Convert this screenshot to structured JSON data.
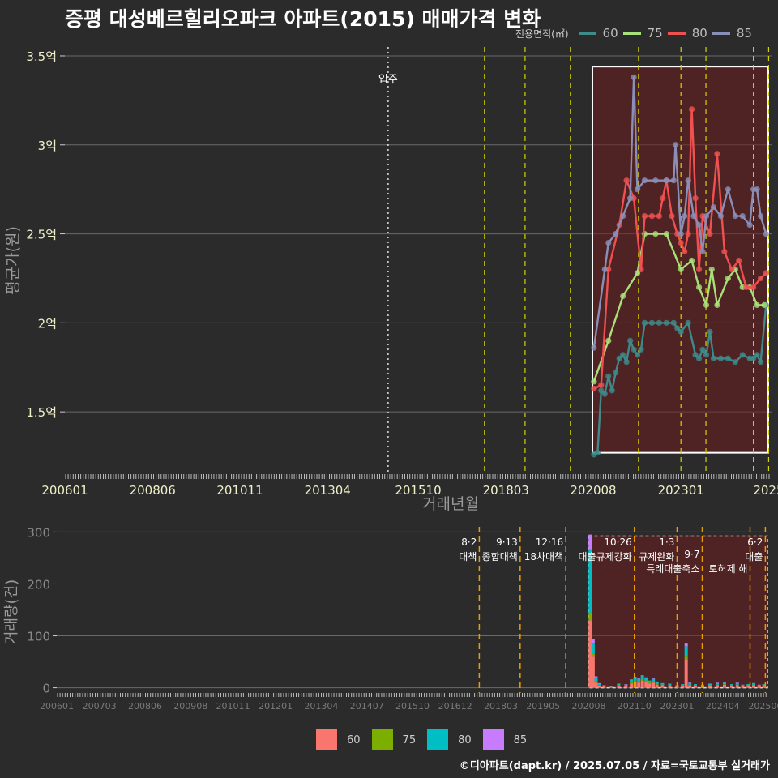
{
  "title": "증평 대성베르힐리오파크 아파트(2015) 매매가격 변화",
  "footer": "©디아파트(dapt.kr) / 2025.07.05 / 자료=국토교통부 실거래가",
  "legend_top": {
    "title": "전용면적(㎡)",
    "items": [
      {
        "label": "60",
        "color": "#3f8a8a"
      },
      {
        "label": "75",
        "color": "#a8e07a"
      },
      {
        "label": "80",
        "color": "#f05050"
      },
      {
        "label": "85",
        "color": "#8a8fb8"
      }
    ]
  },
  "legend_bottom": {
    "items": [
      {
        "label": "60",
        "color": "#f8766d"
      },
      {
        "label": "75",
        "color": "#7cae00"
      },
      {
        "label": "80",
        "color": "#00bfc4"
      },
      {
        "label": "85",
        "color": "#c77cff"
      }
    ]
  },
  "chart_data": [
    {
      "type": "line",
      "title": "증평 대성베르힐리오파크 아파트(2015) 매매가격 변화",
      "xlabel": "거래년월",
      "ylabel": "평균가(원)",
      "x_range": [
        2006.0,
        2025.5
      ],
      "ylim": [
        1.15,
        3.55
      ],
      "y_ticks": [
        {
          "v": 1.5,
          "label": "1.5억"
        },
        {
          "v": 2,
          "label": "2억"
        },
        {
          "v": 2.5,
          "label": "2.5억"
        },
        {
          "v": 3,
          "label": "3억"
        },
        {
          "v": 3.5,
          "label": "3.5억"
        }
      ],
      "x_ticks": [
        {
          "v": 2006.0,
          "label": "200601"
        },
        {
          "v": 2008.42,
          "label": "200806"
        },
        {
          "v": 2010.83,
          "label": "201011"
        },
        {
          "v": 2013.25,
          "label": "201304"
        },
        {
          "v": 2015.75,
          "label": "201510"
        },
        {
          "v": 2018.17,
          "label": "201803"
        },
        {
          "v": 2020.58,
          "label": "202008"
        },
        {
          "v": 2023.0,
          "label": "202301"
        },
        {
          "v": 2025.42,
          "label": "2025"
        }
      ],
      "annotation": {
        "x": 2014.92,
        "label": "입주"
      },
      "policy_lines": [
        2017.58,
        2018.7,
        2019.95,
        2021.83,
        2023.0,
        2023.69,
        2025.0,
        2025.42
      ],
      "highlight_period": [
        2020.58,
        2025.5
      ],
      "series": [
        {
          "name": "60",
          "color": "#3f8a8a",
          "points": [
            [
              2020.6,
              1.26
            ],
            [
              2020.7,
              1.27
            ],
            [
              2020.8,
              1.62
            ],
            [
              2020.9,
              1.6
            ],
            [
              2021.0,
              1.7
            ],
            [
              2021.1,
              1.62
            ],
            [
              2021.2,
              1.72
            ],
            [
              2021.3,
              1.8
            ],
            [
              2021.4,
              1.82
            ],
            [
              2021.5,
              1.78
            ],
            [
              2021.6,
              1.9
            ],
            [
              2021.7,
              1.85
            ],
            [
              2021.8,
              1.82
            ],
            [
              2021.9,
              1.85
            ],
            [
              2022.0,
              2.0
            ],
            [
              2022.2,
              2.0
            ],
            [
              2022.4,
              2.0
            ],
            [
              2022.6,
              2.0
            ],
            [
              2022.8,
              2.0
            ],
            [
              2022.9,
              1.97
            ],
            [
              2023.0,
              1.95
            ],
            [
              2023.2,
              2.0
            ],
            [
              2023.4,
              1.82
            ],
            [
              2023.5,
              1.8
            ],
            [
              2023.6,
              1.85
            ],
            [
              2023.7,
              1.82
            ],
            [
              2023.8,
              1.95
            ],
            [
              2023.9,
              1.8
            ],
            [
              2024.1,
              1.8
            ],
            [
              2024.3,
              1.8
            ],
            [
              2024.5,
              1.78
            ],
            [
              2024.7,
              1.82
            ],
            [
              2024.9,
              1.8
            ],
            [
              2025.0,
              1.8
            ],
            [
              2025.1,
              1.82
            ],
            [
              2025.2,
              1.78
            ],
            [
              2025.35,
              2.1
            ]
          ]
        },
        {
          "name": "75",
          "color": "#a8e07a",
          "points": [
            [
              2020.6,
              1.67
            ],
            [
              2021.0,
              1.9
            ],
            [
              2021.4,
              2.15
            ],
            [
              2021.8,
              2.28
            ],
            [
              2022.0,
              2.5
            ],
            [
              2022.3,
              2.5
            ],
            [
              2022.6,
              2.5
            ],
            [
              2023.0,
              2.3
            ],
            [
              2023.3,
              2.35
            ],
            [
              2023.5,
              2.2
            ],
            [
              2023.7,
              2.1
            ],
            [
              2023.85,
              2.3
            ],
            [
              2024.0,
              2.1
            ],
            [
              2024.3,
              2.25
            ],
            [
              2024.5,
              2.3
            ],
            [
              2024.7,
              2.2
            ],
            [
              2024.9,
              2.2
            ],
            [
              2025.1,
              2.1
            ],
            [
              2025.3,
              2.1
            ]
          ]
        },
        {
          "name": "80",
          "color": "#f05050",
          "points": [
            [
              2020.6,
              1.63
            ],
            [
              2020.8,
              1.65
            ],
            [
              2021.0,
              2.3
            ],
            [
              2021.3,
              2.55
            ],
            [
              2021.5,
              2.8
            ],
            [
              2021.7,
              2.7
            ],
            [
              2021.9,
              2.3
            ],
            [
              2022.0,
              2.6
            ],
            [
              2022.2,
              2.6
            ],
            [
              2022.4,
              2.6
            ],
            [
              2022.5,
              2.7
            ],
            [
              2022.6,
              2.8
            ],
            [
              2022.75,
              2.6
            ],
            [
              2022.9,
              2.5
            ],
            [
              2023.0,
              2.45
            ],
            [
              2023.1,
              2.4
            ],
            [
              2023.2,
              2.5
            ],
            [
              2023.3,
              3.2
            ],
            [
              2023.4,
              2.7
            ],
            [
              2023.5,
              2.3
            ],
            [
              2023.6,
              2.6
            ],
            [
              2023.8,
              2.5
            ],
            [
              2024.0,
              2.95
            ],
            [
              2024.2,
              2.4
            ],
            [
              2024.4,
              2.3
            ],
            [
              2024.6,
              2.35
            ],
            [
              2024.8,
              2.2
            ],
            [
              2025.0,
              2.2
            ],
            [
              2025.2,
              2.25
            ],
            [
              2025.35,
              2.28
            ]
          ]
        },
        {
          "name": "85",
          "color": "#8a8fb8",
          "points": [
            [
              2020.6,
              1.86
            ],
            [
              2020.9,
              2.3
            ],
            [
              2021.0,
              2.45
            ],
            [
              2021.2,
              2.5
            ],
            [
              2021.4,
              2.6
            ],
            [
              2021.6,
              2.7
            ],
            [
              2021.7,
              3.38
            ],
            [
              2021.8,
              2.75
            ],
            [
              2022.0,
              2.8
            ],
            [
              2022.3,
              2.8
            ],
            [
              2022.6,
              2.8
            ],
            [
              2022.8,
              2.8
            ],
            [
              2022.85,
              3.0
            ],
            [
              2023.0,
              2.5
            ],
            [
              2023.1,
              2.6
            ],
            [
              2023.2,
              2.8
            ],
            [
              2023.35,
              2.6
            ],
            [
              2023.5,
              2.55
            ],
            [
              2023.6,
              2.4
            ],
            [
              2023.7,
              2.6
            ],
            [
              2023.9,
              2.65
            ],
            [
              2024.1,
              2.6
            ],
            [
              2024.3,
              2.75
            ],
            [
              2024.5,
              2.6
            ],
            [
              2024.7,
              2.6
            ],
            [
              2024.9,
              2.55
            ],
            [
              2025.0,
              2.75
            ],
            [
              2025.1,
              2.75
            ],
            [
              2025.2,
              2.6
            ],
            [
              2025.35,
              2.5
            ]
          ]
        }
      ]
    },
    {
      "type": "bar",
      "ylabel": "거래량(건)",
      "x_range": [
        2006.0,
        2025.5
      ],
      "ylim": [
        -10,
        310
      ],
      "y_ticks": [
        {
          "v": 0,
          "label": "0"
        },
        {
          "v": 100,
          "label": "100"
        },
        {
          "v": 200,
          "label": "200"
        },
        {
          "v": 300,
          "label": "300"
        }
      ],
      "x_ticks": [
        {
          "v": 2006.0,
          "label": "200601"
        },
        {
          "v": 2007.17,
          "label": "200703"
        },
        {
          "v": 2008.42,
          "label": "200806"
        },
        {
          "v": 2009.67,
          "label": "200908"
        },
        {
          "v": 2010.83,
          "label": "201011"
        },
        {
          "v": 2012.0,
          "label": "201201"
        },
        {
          "v": 2013.25,
          "label": "201304"
        },
        {
          "v": 2014.5,
          "label": "201407"
        },
        {
          "v": 2015.75,
          "label": "201510"
        },
        {
          "v": 2016.92,
          "label": "201612"
        },
        {
          "v": 2018.17,
          "label": "201803"
        },
        {
          "v": 2019.33,
          "label": "201905"
        },
        {
          "v": 2020.58,
          "label": "202008"
        },
        {
          "v": 2021.83,
          "label": "202110"
        },
        {
          "v": 2023.0,
          "label": "202301"
        },
        {
          "v": 2024.25,
          "label": "202404"
        },
        {
          "v": 2025.42,
          "label": "202506"
        }
      ],
      "policy_lines": [
        {
          "x": 2017.58,
          "date": "8·2",
          "label": "대책"
        },
        {
          "x": 2018.7,
          "date": "9·13",
          "label": "종합대책"
        },
        {
          "x": 2019.95,
          "date": "12·16",
          "label": "18차대책"
        },
        {
          "x": 2021.83,
          "date": "10·26",
          "label": "대출규제강화"
        },
        {
          "x": 2023.0,
          "date": "1·3",
          "label": "규제완화"
        },
        {
          "x": 2023.69,
          "date": "9·7",
          "label": "특례대출축소"
        },
        {
          "x": 2025.0,
          "date": "",
          "label": "토허제 해"
        },
        {
          "x": 2025.42,
          "date": "6·2",
          "label": "대출"
        }
      ],
      "highlight_period": [
        2020.58,
        2025.5
      ],
      "series": [
        {
          "name": "60",
          "color": "#f8766d"
        },
        {
          "name": "75",
          "color": "#7cae00"
        },
        {
          "name": "80",
          "color": "#00bfc4"
        },
        {
          "name": "85",
          "color": "#c77cff"
        }
      ],
      "bars": [
        {
          "x": 2020.62,
          "values": [
            130,
            15,
            120,
            30
          ]
        },
        {
          "x": 2020.7,
          "values": [
            60,
            5,
            20,
            8
          ]
        },
        {
          "x": 2020.78,
          "values": [
            10,
            2,
            8,
            2
          ]
        },
        {
          "x": 2020.86,
          "values": [
            4,
            1,
            3,
            1
          ]
        },
        {
          "x": 2021.0,
          "values": [
            3,
            0,
            2,
            0
          ]
        },
        {
          "x": 2021.2,
          "values": [
            2,
            0,
            2,
            0
          ]
        },
        {
          "x": 2021.4,
          "values": [
            4,
            1,
            3,
            0
          ]
        },
        {
          "x": 2021.6,
          "values": [
            3,
            1,
            2,
            1
          ]
        },
        {
          "x": 2021.75,
          "values": [
            8,
            2,
            5,
            1
          ]
        },
        {
          "x": 2021.85,
          "values": [
            12,
            2,
            6,
            1
          ]
        },
        {
          "x": 2021.95,
          "values": [
            10,
            2,
            5,
            1
          ]
        },
        {
          "x": 2022.05,
          "values": [
            14,
            3,
            6,
            1
          ]
        },
        {
          "x": 2022.15,
          "values": [
            12,
            2,
            5,
            1
          ]
        },
        {
          "x": 2022.25,
          "values": [
            8,
            2,
            4,
            0
          ]
        },
        {
          "x": 2022.35,
          "values": [
            10,
            2,
            5,
            1
          ]
        },
        {
          "x": 2022.45,
          "values": [
            6,
            1,
            4,
            1
          ]
        },
        {
          "x": 2022.6,
          "values": [
            5,
            1,
            3,
            0
          ]
        },
        {
          "x": 2022.8,
          "values": [
            4,
            1,
            3,
            0
          ]
        },
        {
          "x": 2023.0,
          "values": [
            3,
            0,
            2,
            0
          ]
        },
        {
          "x": 2023.15,
          "values": [
            4,
            1,
            2,
            0
          ]
        },
        {
          "x": 2023.25,
          "values": [
            55,
            5,
            20,
            5
          ]
        },
        {
          "x": 2023.35,
          "values": [
            5,
            1,
            3,
            1
          ]
        },
        {
          "x": 2023.5,
          "values": [
            4,
            1,
            2,
            0
          ]
        },
        {
          "x": 2023.7,
          "values": [
            3,
            1,
            2,
            0
          ]
        },
        {
          "x": 2023.9,
          "values": [
            4,
            1,
            3,
            0
          ]
        },
        {
          "x": 2024.1,
          "values": [
            5,
            1,
            3,
            1
          ]
        },
        {
          "x": 2024.3,
          "values": [
            6,
            1,
            3,
            1
          ]
        },
        {
          "x": 2024.5,
          "values": [
            4,
            1,
            2,
            0
          ]
        },
        {
          "x": 2024.65,
          "values": [
            5,
            1,
            3,
            1
          ]
        },
        {
          "x": 2024.8,
          "values": [
            3,
            1,
            2,
            0
          ]
        },
        {
          "x": 2024.95,
          "values": [
            4,
            1,
            2,
            0
          ]
        },
        {
          "x": 2025.1,
          "values": [
            5,
            1,
            3,
            0
          ]
        },
        {
          "x": 2025.25,
          "values": [
            3,
            0,
            2,
            1
          ]
        },
        {
          "x": 2025.38,
          "values": [
            4,
            1,
            2,
            0
          ]
        }
      ]
    }
  ]
}
